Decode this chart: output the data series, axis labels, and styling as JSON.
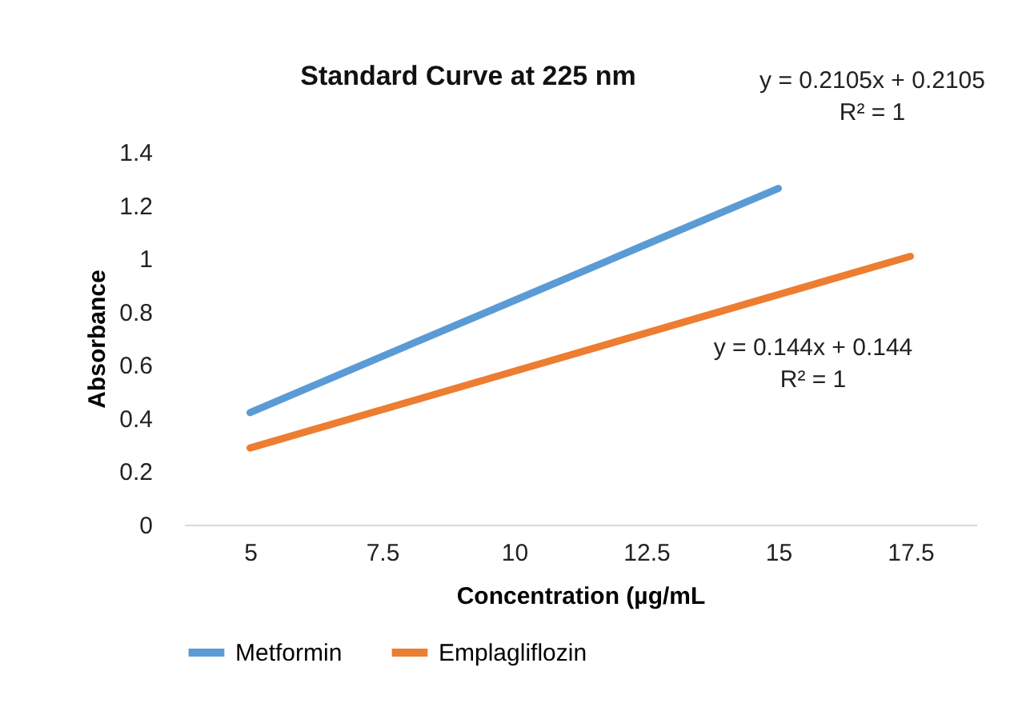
{
  "chart_data": {
    "type": "line",
    "title": "Standard Curve at 225 nm",
    "xlabel": "Concentration (µg/mL",
    "ylabel": "Absorbance",
    "categories": [
      "5",
      "7.5",
      "10",
      "12.5",
      "15",
      "17.5"
    ],
    "series": [
      {
        "name": "Metformin",
        "color": "#5b9bd5",
        "values": [
          0.421,
          0.632,
          0.842,
          1.053,
          1.263,
          null
        ]
      },
      {
        "name": "Emplagliflozin",
        "color": "#ed7d31",
        "values": [
          0.288,
          0.432,
          0.576,
          0.72,
          0.864,
          1.008
        ]
      }
    ],
    "ylim": [
      0,
      1.4
    ],
    "yticks": [
      0,
      0.2,
      0.4,
      0.6,
      0.8,
      1,
      1.2,
      1.4
    ],
    "grid": false,
    "legend": "bottom",
    "annotations": [
      "y = 0.2105x + 0.2105\nR² = 1",
      "y = 0.144x + 0.144\nR² = 1"
    ]
  }
}
